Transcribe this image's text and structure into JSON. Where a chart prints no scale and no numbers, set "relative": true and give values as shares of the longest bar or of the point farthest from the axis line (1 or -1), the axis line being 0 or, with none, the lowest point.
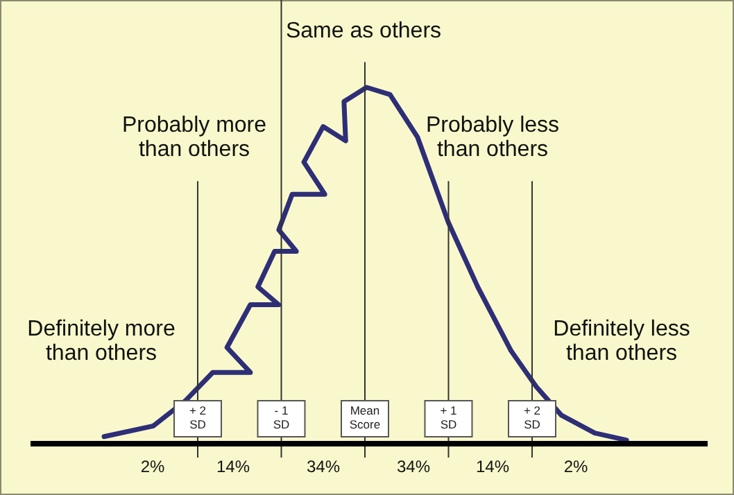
{
  "chart_data": {
    "type": "line",
    "relative": true,
    "tick_labels": "x",
    "xlim": [
      -4,
      4.1
    ],
    "grid": "x",
    "xticks": [
      {
        "value": -2,
        "label": "+ 2 SD"
      },
      {
        "value": -1,
        "label": "- 1 SD"
      },
      {
        "value": 0,
        "label": "Mean Score"
      },
      {
        "value": 1,
        "label": "+ 1 SD"
      },
      {
        "value": 2,
        "label": "+ 2 SD"
      }
    ],
    "x": [
      -3.12,
      -2.53,
      -2.15,
      -1.82,
      -1.37,
      -1.65,
      -1.37,
      -1.03,
      -1.28,
      -1.08,
      -0.82,
      -1.03,
      -0.87,
      -0.48,
      -0.73,
      -0.5,
      -0.23,
      -0.25,
      0.02,
      0.3,
      0.63,
      1.0,
      1.35,
      1.75,
      2.05,
      2.35,
      2.75,
      3.13
    ],
    "series": [
      {
        "color": "#2e2e78",
        "values": [
          0.02,
          0.05,
          0.12,
          0.2,
          0.2,
          0.27,
          0.39,
          0.39,
          0.44,
          0.54,
          0.54,
          0.6,
          0.7,
          0.7,
          0.79,
          0.89,
          0.85,
          0.96,
          1.0,
          0.98,
          0.86,
          0.62,
          0.44,
          0.26,
          0.16,
          0.08,
          0.03,
          0.01
        ]
      }
    ],
    "annotations": [
      "Same as others",
      "Probably more than others",
      "Definitely more than others",
      "Probably less than others",
      "Definitely less than others",
      "2%",
      "14%",
      "34%",
      "34%",
      "14%",
      "2%"
    ]
  }
}
